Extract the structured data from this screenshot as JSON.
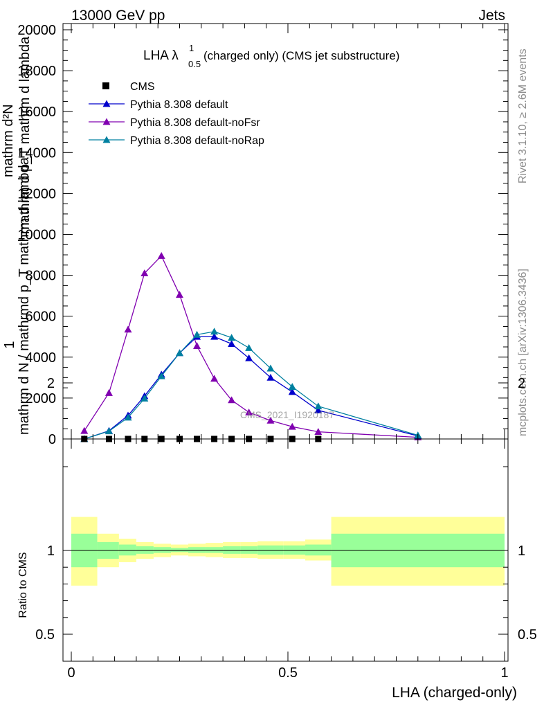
{
  "header": {
    "left": "13000 GeV pp",
    "right": "Jets"
  },
  "side_texts": {
    "rivet": "Rivet 3.1.10, ≥ 2.6M events",
    "mcplots": "mcplots.cern.ch [arXiv:1306.3436]"
  },
  "watermark": "CMS_2021_I1920187",
  "colors": {
    "cms": "#000000",
    "default": "#0000cc",
    "noFsr": "#8000b0",
    "noRap": "#0080a0",
    "band_inner": "#99ff99",
    "band_outer": "#ffff99"
  },
  "chart_data": [
    {
      "type": "line",
      "title_main": "LHA λ",
      "title_sup": "1",
      "title_sub": "0.5",
      "title_rest": " (charged only) (CMS jet substructure)",
      "ylabel_top": "1",
      "ylabel_num": "mathrm d N",
      "ylabel_den": "mathrm d N / mathrmd p_T mathrm d lambda",
      "ylabel_num2": "mathrm d²N",
      "ylabel_den2": "mathrm d p_T mathrm d lambda",
      "ylim": [
        0,
        20000
      ],
      "xlim": [
        0,
        1
      ],
      "y_ticks": [
        "0",
        "2000",
        "4000",
        "6000",
        "8000",
        "10000",
        "12000",
        "14000",
        "16000",
        "18000",
        "20000"
      ],
      "legend": {
        "position": "top-left",
        "entries": [
          "CMS",
          "Pythia 8.308 default",
          "Pythia 8.308 default-noFsr",
          "Pythia 8.308 default-noRap"
        ]
      },
      "x": [
        0.03,
        0.087,
        0.131,
        0.169,
        0.208,
        0.25,
        0.29,
        0.33,
        0.37,
        0.41,
        0.46,
        0.51,
        0.57,
        0.8
      ],
      "series": [
        {
          "name": "CMS",
          "style": "square",
          "values": [
            1,
            1,
            1,
            1,
            1,
            1,
            1,
            1,
            1,
            1,
            1,
            1,
            1,
            null
          ]
        },
        {
          "name": "Pythia 8.308 default",
          "style": "triangle",
          "values": [
            0,
            400,
            1150,
            2100,
            3150,
            4200,
            5000,
            5000,
            4650,
            3950,
            3000,
            2300,
            1400,
            150
          ]
        },
        {
          "name": "Pythia 8.308 default-noFsr",
          "style": "triangle",
          "values": [
            400,
            2250,
            5350,
            8100,
            8950,
            7050,
            4550,
            2950,
            1900,
            1300,
            900,
            600,
            350,
            80
          ]
        },
        {
          "name": "Pythia 8.308 default-noRap",
          "style": "triangle",
          "values": [
            0,
            380,
            1050,
            1980,
            3070,
            4200,
            5100,
            5250,
            4950,
            4450,
            3450,
            2550,
            1600,
            180
          ]
        }
      ]
    },
    {
      "type": "area",
      "ylabel": "Ratio to CMS",
      "xlabel": "LHA (charged-only)",
      "ylim": [
        0.35,
        2.3
      ],
      "y_ticks": [
        "0.5",
        "1",
        "2"
      ],
      "x_ticks": [
        "0",
        "0.5",
        "1"
      ],
      "bins": [
        {
          "lo": 0.0,
          "hi": 0.06,
          "inner": [
            0.9,
            1.1
          ],
          "outer": [
            0.79,
            1.2
          ]
        },
        {
          "lo": 0.06,
          "hi": 0.11,
          "inner": [
            0.95,
            1.05
          ],
          "outer": [
            0.9,
            1.1
          ]
        },
        {
          "lo": 0.11,
          "hi": 0.15,
          "inner": [
            0.97,
            1.035
          ],
          "outer": [
            0.93,
            1.07
          ]
        },
        {
          "lo": 0.15,
          "hi": 0.19,
          "inner": [
            0.98,
            1.025
          ],
          "outer": [
            0.95,
            1.05
          ]
        },
        {
          "lo": 0.19,
          "hi": 0.23,
          "inner": [
            0.985,
            1.02
          ],
          "outer": [
            0.96,
            1.04
          ]
        },
        {
          "lo": 0.23,
          "hi": 0.27,
          "inner": [
            0.99,
            1.015
          ],
          "outer": [
            0.97,
            1.035
          ]
        },
        {
          "lo": 0.27,
          "hi": 0.31,
          "inner": [
            0.985,
            1.02
          ],
          "outer": [
            0.965,
            1.04
          ]
        },
        {
          "lo": 0.31,
          "hi": 0.35,
          "inner": [
            0.985,
            1.02
          ],
          "outer": [
            0.96,
            1.045
          ]
        },
        {
          "lo": 0.35,
          "hi": 0.39,
          "inner": [
            0.98,
            1.025
          ],
          "outer": [
            0.955,
            1.05
          ]
        },
        {
          "lo": 0.39,
          "hi": 0.43,
          "inner": [
            0.98,
            1.025
          ],
          "outer": [
            0.955,
            1.05
          ]
        },
        {
          "lo": 0.43,
          "hi": 0.49,
          "inner": [
            0.975,
            1.03
          ],
          "outer": [
            0.95,
            1.055
          ]
        },
        {
          "lo": 0.49,
          "hi": 0.54,
          "inner": [
            0.975,
            1.03
          ],
          "outer": [
            0.95,
            1.055
          ]
        },
        {
          "lo": 0.54,
          "hi": 0.6,
          "inner": [
            0.97,
            1.035
          ],
          "outer": [
            0.94,
            1.065
          ]
        },
        {
          "lo": 0.6,
          "hi": 1.0,
          "inner": [
            0.9,
            1.1
          ],
          "outer": [
            0.79,
            1.2
          ]
        }
      ],
      "reference_line": 1
    }
  ]
}
